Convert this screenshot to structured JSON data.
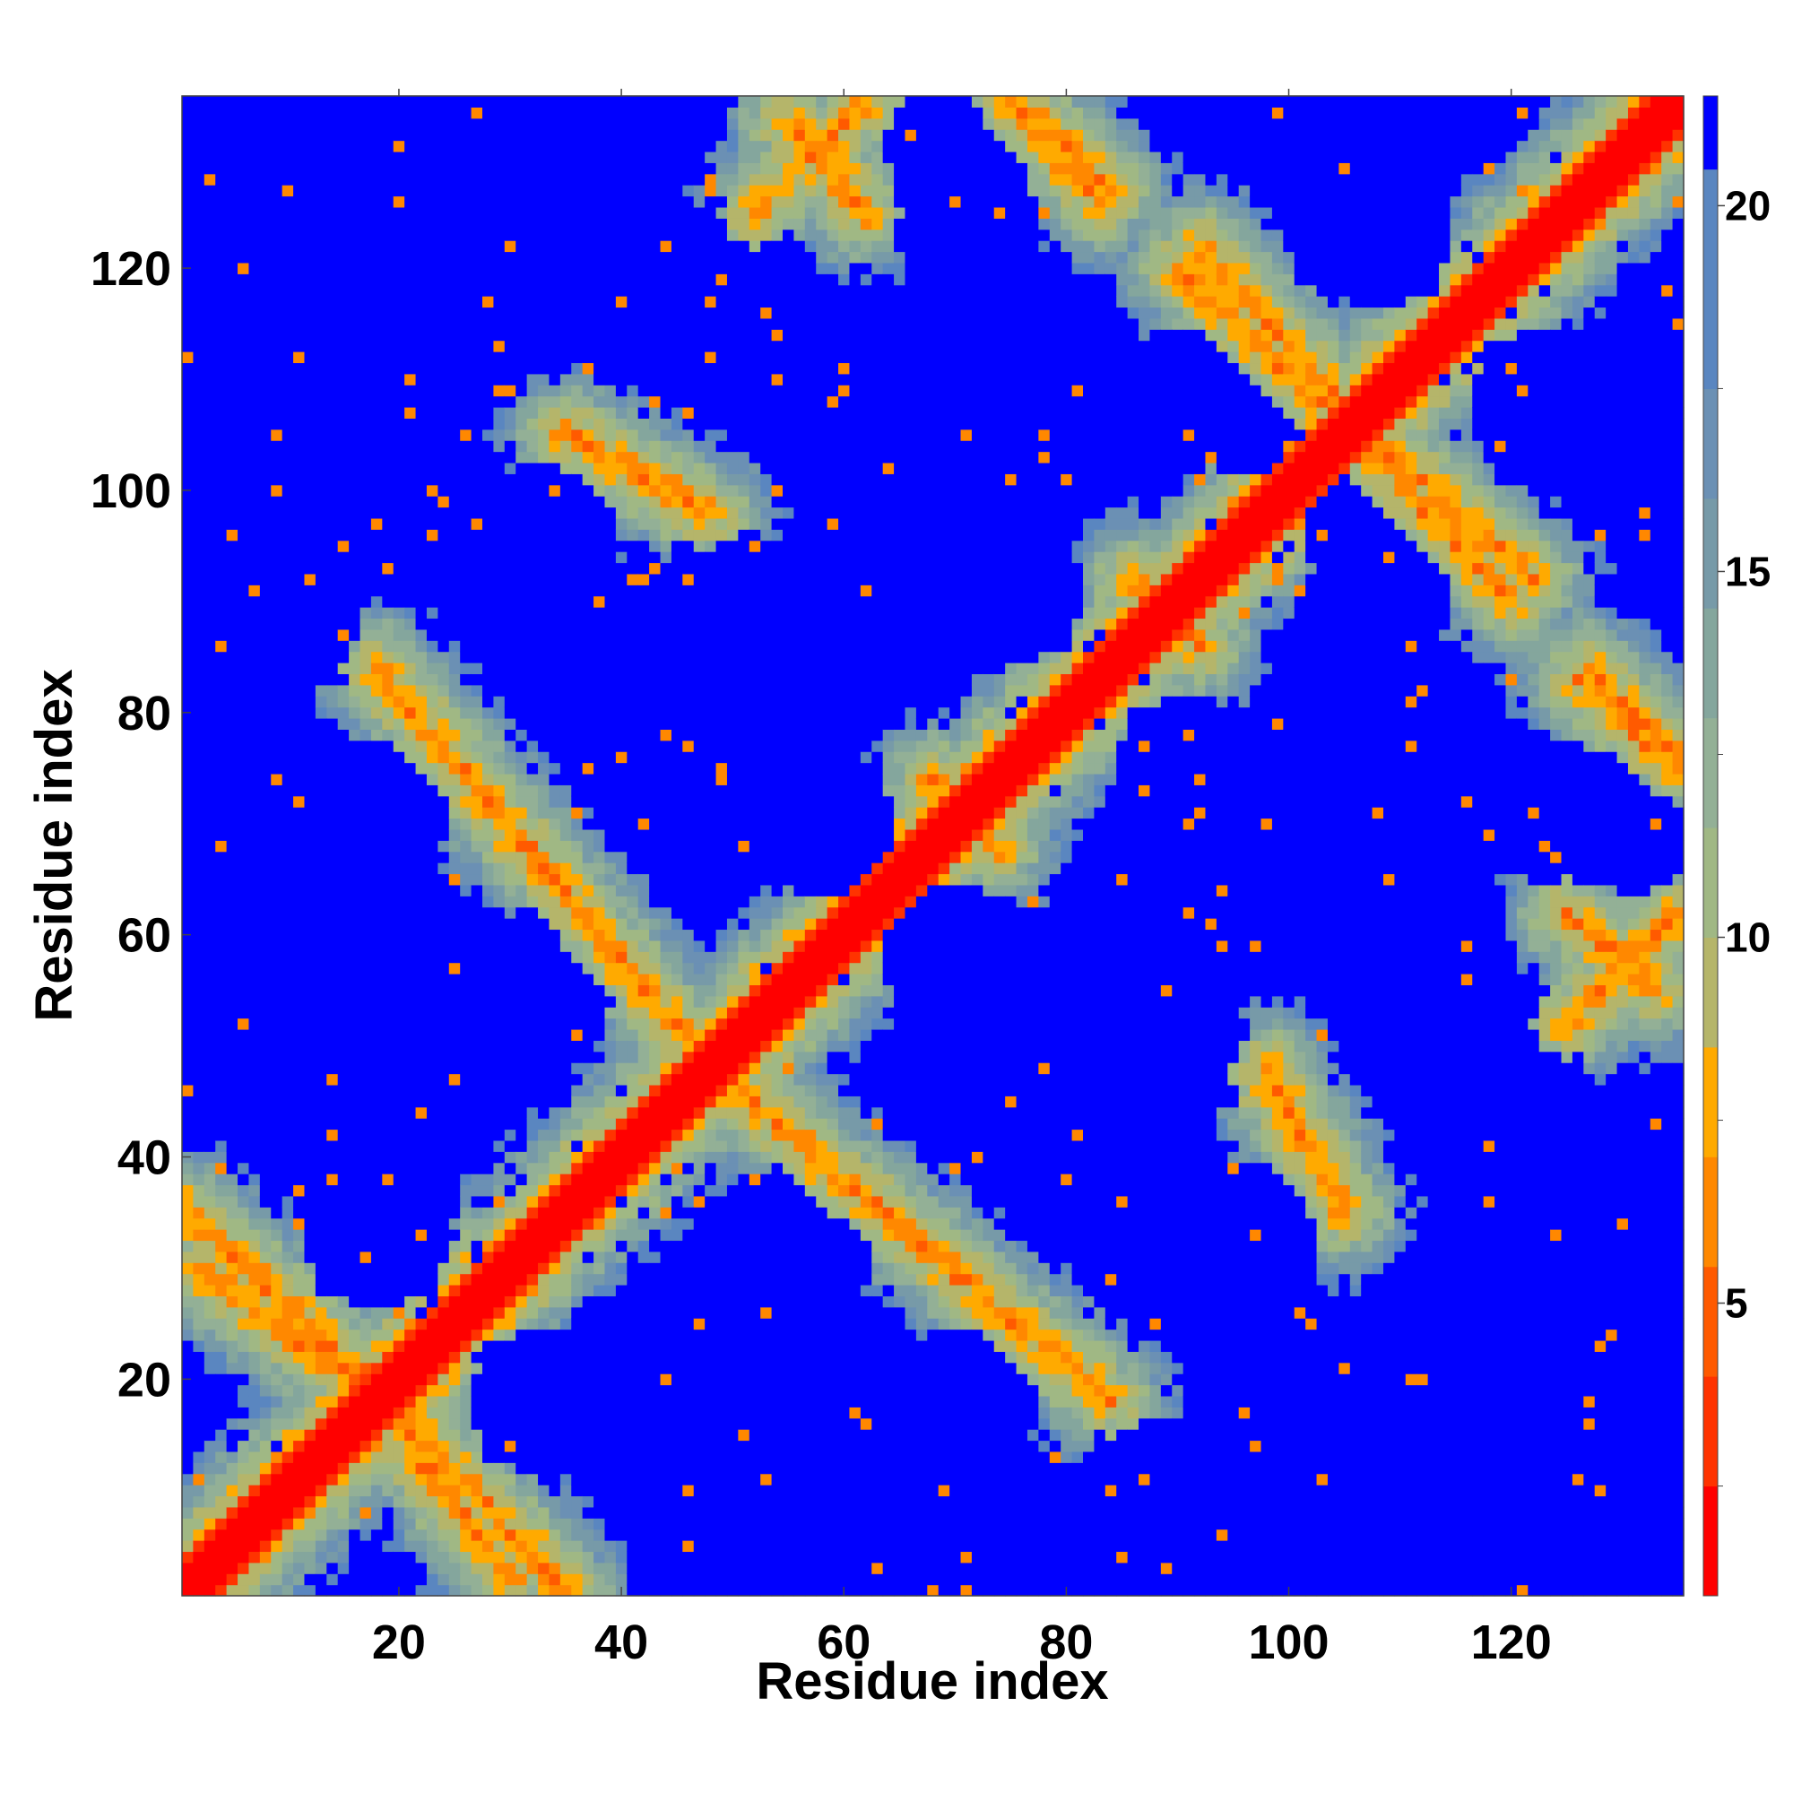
{
  "chart_data": {
    "type": "heatmap",
    "title": "",
    "xlabel": "Residue index",
    "ylabel": "Residue index",
    "n_residues": 135,
    "x_range": [
      1,
      135
    ],
    "y_range": [
      1,
      135
    ],
    "x_ticks": [
      20,
      40,
      60,
      80,
      100,
      120
    ],
    "y_ticks": [
      20,
      40,
      60,
      80,
      100,
      120
    ],
    "colorbar": {
      "min": 1,
      "max": 21.5,
      "ticks": [
        5,
        10,
        15,
        20
      ],
      "levels": [
        {
          "upper": 2.5,
          "color": "#ff0000"
        },
        {
          "upper": 4.0,
          "color": "#ff3300"
        },
        {
          "upper": 5.5,
          "color": "#ff5a00"
        },
        {
          "upper": 7.0,
          "color": "#ff8800"
        },
        {
          "upper": 8.5,
          "color": "#ffaa00"
        },
        {
          "upper": 10.0,
          "color": "#b5b56a"
        },
        {
          "upper": 11.5,
          "color": "#a0b884"
        },
        {
          "upper": 13.0,
          "color": "#93b096"
        },
        {
          "upper": 14.5,
          "color": "#84a69d"
        },
        {
          "upper": 16.0,
          "color": "#779aa8"
        },
        {
          "upper": 17.5,
          "color": "#6b90b4"
        },
        {
          "upper": 20.5,
          "color": "#5a86c0"
        },
        {
          "upper": 21.5,
          "color": "#0000ff"
        }
      ]
    },
    "structure": {
      "description_of_values": "pairwise residue distance map; diagonal near 1-3, contact bands 5-8, background >20",
      "antiparallel_contact_bands": [
        {
          "from": [
            1,
            35
          ],
          "to": [
            20,
            17
          ]
        },
        {
          "from": [
            2,
            30
          ],
          "to": [
            22,
            15
          ]
        },
        {
          "from": [
            17,
            21
          ],
          "to": [
            30,
            2
          ]
        },
        {
          "from": [
            18,
            84
          ],
          "to": [
            48,
            48
          ]
        },
        {
          "from": [
            35,
            105
          ],
          "to": [
            48,
            98
          ]
        },
        {
          "from": [
            48,
            48
          ],
          "to": [
            84,
            18
          ]
        },
        {
          "from": [
            55,
            133
          ],
          "to": [
            62,
            125
          ]
        },
        {
          "from": [
            76,
            135
          ],
          "to": [
            84,
            127
          ]
        },
        {
          "from": [
            92,
            122
          ],
          "to": [
            106,
            106
          ]
        },
        {
          "from": [
            98,
            47
          ],
          "to": [
            104,
            37
          ]
        },
        {
          "from": [
            106,
            105
          ],
          "to": [
            120,
            90
          ]
        },
        {
          "from": [
            126,
            83
          ],
          "to": [
            135,
            75
          ]
        },
        {
          "from": [
            125,
            52
          ],
          "to": [
            135,
            62
          ]
        },
        {
          "from": [
            68,
            71
          ],
          "to": [
            74,
            68
          ]
        },
        {
          "from": [
            86,
            92
          ],
          "to": [
            92,
            86
          ]
        }
      ],
      "background_blocks_centers": [
        [
          18,
          106
        ],
        [
          18,
          71
        ],
        [
          18,
          33
        ],
        [
          50,
          120
        ],
        [
          50,
          90
        ],
        [
          58,
          70
        ],
        [
          56,
          33
        ],
        [
          70,
          132
        ],
        [
          75,
          91
        ],
        [
          80,
          50
        ],
        [
          88,
          10
        ],
        [
          96,
          108
        ],
        [
          96,
          71
        ],
        [
          96,
          33
        ],
        [
          108,
          123
        ],
        [
          108,
          90
        ],
        [
          118,
          17
        ],
        [
          124,
          106
        ],
        [
          124,
          71
        ],
        [
          124,
          36
        ],
        [
          122,
          8
        ]
      ]
    }
  }
}
